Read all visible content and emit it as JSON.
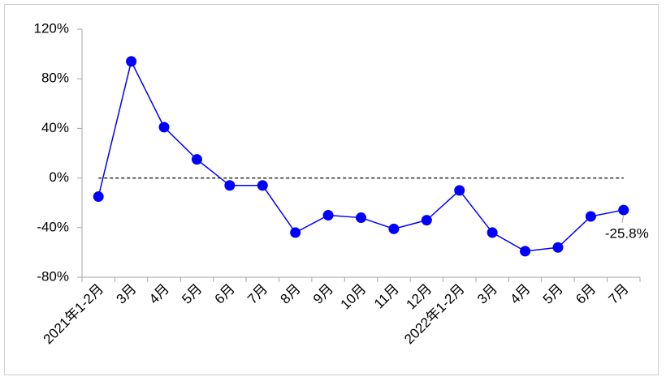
{
  "chart_data": {
    "type": "line",
    "categories": [
      "2021年1-2月",
      "3月",
      "4月",
      "5月",
      "6月",
      "7月",
      "8月",
      "9月",
      "10月",
      "11月",
      "12月",
      "2022年1-2月",
      "3月",
      "4月",
      "5月",
      "6月",
      "7月"
    ],
    "series": [
      {
        "color": "#0000ff",
        "values": [
          -15,
          94,
          41,
          15,
          -6,
          -6,
          -44,
          -30,
          -32,
          -41,
          -34,
          -10,
          -44,
          -59,
          -56,
          -31,
          -25.8
        ],
        "value_labels": [
          null,
          null,
          null,
          null,
          null,
          null,
          null,
          null,
          null,
          null,
          null,
          null,
          null,
          null,
          null,
          null,
          "-25.8%"
        ]
      }
    ],
    "ylim": [
      -80,
      120
    ],
    "yticks": [
      {
        "value": -80,
        "label": "-80%"
      },
      {
        "value": -40,
        "label": "-40%"
      },
      {
        "value": 0,
        "label": "0%"
      },
      {
        "value": 40,
        "label": "40%"
      },
      {
        "value": 80,
        "label": "80%"
      },
      {
        "value": 120,
        "label": "120%"
      }
    ],
    "zero_line": true
  }
}
